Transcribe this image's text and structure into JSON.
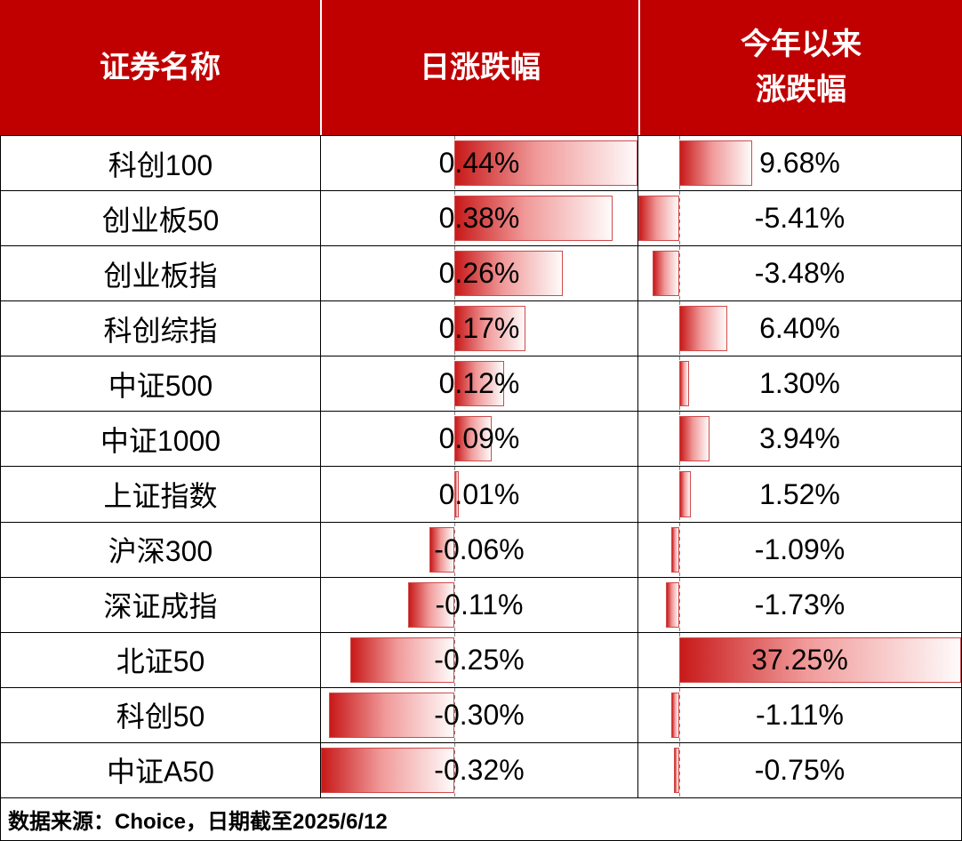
{
  "colors": {
    "header_bg": "#C00000",
    "header_text": "#FFFFFF",
    "bar_color": "#C00000",
    "grid": "#000000"
  },
  "header": {
    "col1": "证券名称",
    "col2": "日涨跌幅",
    "col3_line1": "今年以来",
    "col3_line2": "涨跌幅"
  },
  "footer": {
    "source": "数据来源：Choice，日期截至2025/6/12"
  },
  "chart_data": {
    "type": "bar",
    "subtype": "table-with-data-bars",
    "orientation": "horizontal",
    "columns": [
      "证券名称",
      "日涨跌幅",
      "今年以来涨跌幅"
    ],
    "categories": [
      "科创100",
      "创业板50",
      "创业板指",
      "科创综指",
      "中证500",
      "中证1000",
      "上证指数",
      "沪深300",
      "深证成指",
      "北证50",
      "科创50",
      "中证A50"
    ],
    "series": [
      {
        "name": "日涨跌幅",
        "unit": "%",
        "values": [
          0.44,
          0.38,
          0.26,
          0.17,
          0.12,
          0.09,
          0.01,
          -0.06,
          -0.11,
          -0.25,
          -0.3,
          -0.32
        ],
        "labels": [
          "0.44%",
          "0.38%",
          "0.26%",
          "0.17%",
          "0.12%",
          "0.09%",
          "0.01%",
          "-0.06%",
          "-0.11%",
          "-0.25%",
          "-0.30%",
          "-0.32%"
        ],
        "axis_min": -0.32,
        "axis_max": 0.44
      },
      {
        "name": "今年以来涨跌幅",
        "unit": "%",
        "values": [
          9.68,
          -5.41,
          -3.48,
          6.4,
          1.3,
          3.94,
          1.52,
          -1.09,
          -1.73,
          37.25,
          -1.11,
          -0.75
        ],
        "labels": [
          "9.68%",
          "-5.41%",
          "-3.48%",
          "6.40%",
          "1.30%",
          "3.94%",
          "1.52%",
          "-1.09%",
          "-1.73%",
          "37.25%",
          "-1.11%",
          "-0.75%"
        ],
        "axis_min": -5.41,
        "axis_max": 37.25
      }
    ],
    "bar_color": "#C00000",
    "legend_position": "none",
    "grid": false
  }
}
